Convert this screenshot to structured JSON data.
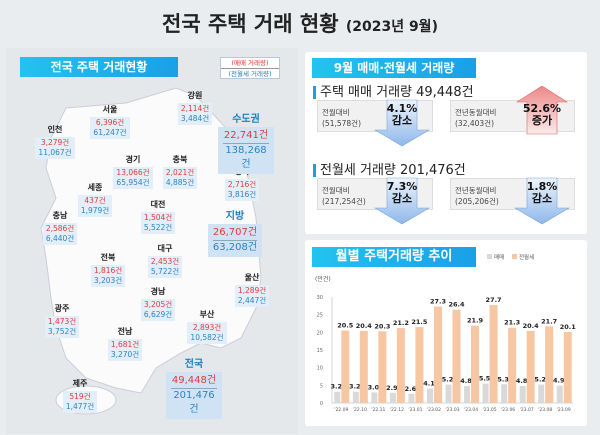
{
  "title": "전국 주택 거래 현황",
  "title_date": "(2023년 9월)",
  "left": {
    "header": "전국 주택 거래현황",
    "legend_sale": "(매매 거래량)",
    "legend_rent": "(전월세 거래량)",
    "regions": [
      {
        "name": "인천",
        "sale": "3,279건",
        "rent": "11,067건"
      },
      {
        "name": "서울",
        "sale": "6,396건",
        "rent": "61,247건"
      },
      {
        "name": "강원",
        "sale": "2,114건",
        "rent": "3,484건"
      },
      {
        "name": "경기",
        "sale": "13,066건",
        "rent": "65,954건"
      },
      {
        "name": "충북",
        "sale": "2,021건",
        "rent": "4,885건"
      },
      {
        "name": "경북",
        "sale": "2,716건",
        "rent": "3,816건"
      },
      {
        "name": "세종",
        "sale": "437건",
        "rent": "1,979건"
      },
      {
        "name": "대전",
        "sale": "1,504건",
        "rent": "5,522건"
      },
      {
        "name": "충남",
        "sale": "2,586건",
        "rent": "6,440건"
      },
      {
        "name": "대구",
        "sale": "2,453건",
        "rent": "5,722건"
      },
      {
        "name": "전북",
        "sale": "1,816건",
        "rent": "3,203건"
      },
      {
        "name": "울산",
        "sale": "1,289건",
        "rent": "2,447건"
      },
      {
        "name": "경남",
        "sale": "3,205건",
        "rent": "6,629건"
      },
      {
        "name": "광주",
        "sale": "1,473건",
        "rent": "3,752건"
      },
      {
        "name": "부산",
        "sale": "2,893건",
        "rent": "10,582건"
      },
      {
        "name": "전남",
        "sale": "1,681건",
        "rent": "3,270건"
      },
      {
        "name": "제주",
        "sale": "519건",
        "rent": "1,477건"
      }
    ],
    "totals": [
      {
        "name": "수도권",
        "sale": "22,741건",
        "rent": "138,268건"
      },
      {
        "name": "지방",
        "sale": "26,707건",
        "rent": "63,208건"
      },
      {
        "name": "전국",
        "sale": "49,448건",
        "rent": "201,476건"
      }
    ]
  },
  "summary": {
    "header": "9월 매매·전월세 거래량",
    "sale_heading": "주택 매매 거래량 49,448건",
    "sale": [
      {
        "label": "전월대비",
        "base": "(51,578건)",
        "pct": "4.1%",
        "dir": "감소"
      },
      {
        "label": "전년동월대비",
        "base": "(32,403건)",
        "pct": "52.6%",
        "dir": "증가"
      }
    ],
    "rent_heading": "전월세 거래량 201,476건",
    "rent": [
      {
        "label": "전월대비",
        "base": "(217,254건)",
        "pct": "7.3%",
        "dir": "감소"
      },
      {
        "label": "전년동월대비",
        "base": "(205,206건)",
        "pct": "1.8%",
        "dir": "감소"
      }
    ]
  },
  "chart_data": {
    "type": "bar",
    "title": "월별 주택거래량 추이",
    "ylabel": "(만건)",
    "ylim": [
      0,
      30
    ],
    "yticks": [
      0,
      5,
      10,
      15,
      20,
      25,
      30
    ],
    "categories": [
      "'22.09",
      "'22.10",
      "'22.11",
      "'22.12",
      "'23.01",
      "'23.02",
      "'23.03",
      "'23.04",
      "'23.05",
      "'23.06",
      "'23.07",
      "'23.08",
      "'23.09"
    ],
    "series": [
      {
        "name": "매매",
        "color": "#d9d9d9",
        "values": [
          3.2,
          3.2,
          3.0,
          2.9,
          2.6,
          4.1,
          5.2,
          4.8,
          5.5,
          5.3,
          4.8,
          5.2,
          4.9
        ]
      },
      {
        "name": "전월세",
        "color": "#f7c6a3",
        "values": [
          20.5,
          20.4,
          20.3,
          21.2,
          21.5,
          27.3,
          26.4,
          21.9,
          27.7,
          21.3,
          20.4,
          21.7,
          20.1
        ]
      }
    ]
  }
}
